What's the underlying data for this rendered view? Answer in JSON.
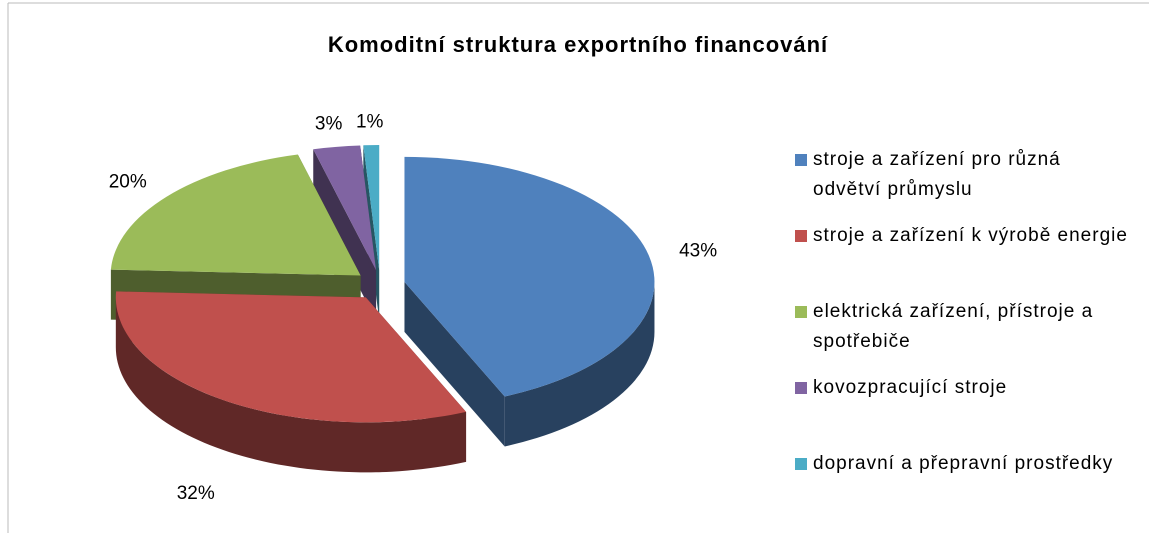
{
  "chart_data": {
    "type": "pie",
    "title": "Komoditní struktura exportního financování",
    "categories": [
      "stroje a zařízení pro různá odvětví průmyslu",
      "stroje a zařízení k výrobě energie",
      "elektrická zařízení, přístroje a spotřebiče",
      "kovozpracující stroje",
      "dopravní a přepravní prostředky"
    ],
    "values": [
      43,
      32,
      20,
      3,
      1
    ],
    "value_labels": [
      "43%",
      "32%",
      "20%",
      "3%",
      "1%"
    ],
    "colors": [
      "#4f81bd",
      "#c0504d",
      "#9bbb59",
      "#8064a2",
      "#4bacc6"
    ],
    "legend": "right"
  }
}
